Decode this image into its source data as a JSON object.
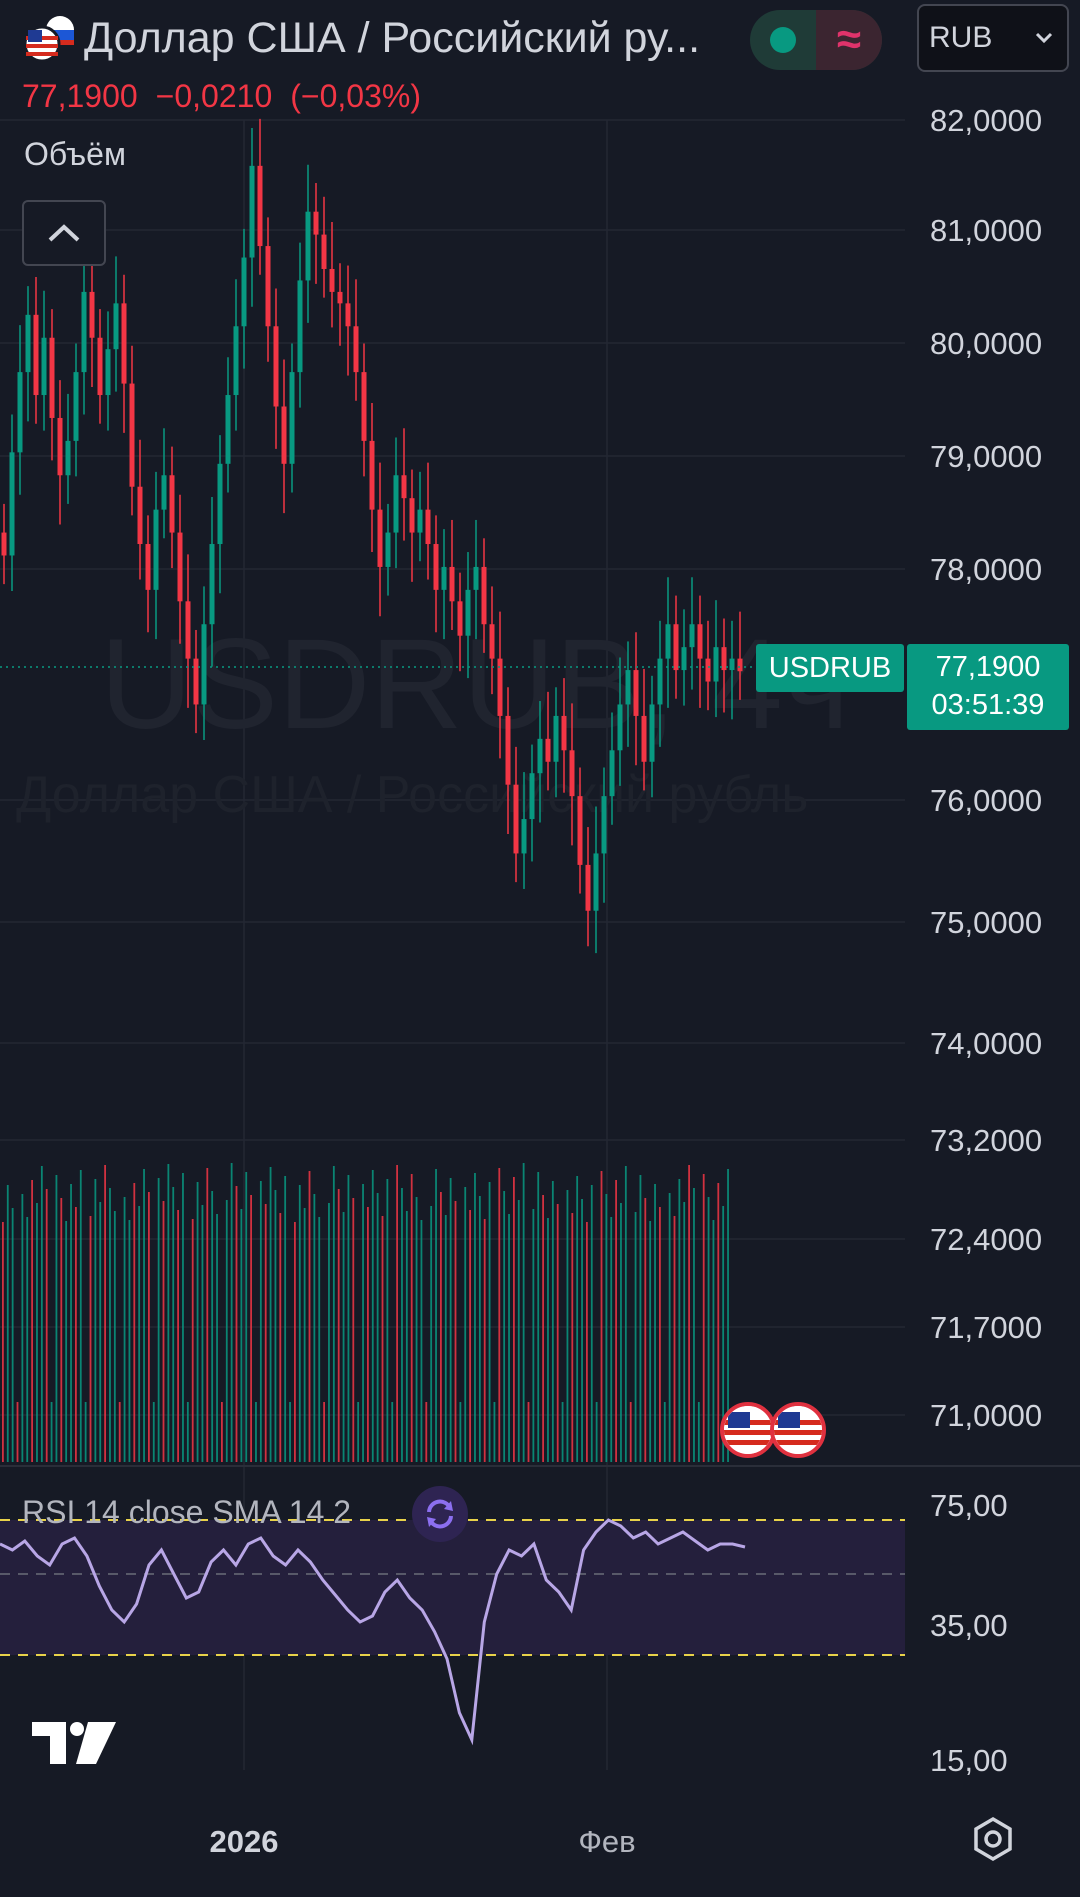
{
  "header": {
    "title": "Доллар США / Российский ру...",
    "price": "77,1900",
    "change": "−0,0210",
    "change_pct": "(−0,03%)",
    "volume_label": "Объём",
    "currency": "RUB",
    "up_color": "#089981",
    "down_color": "#f23645",
    "icons": [
      "flag-us-ru-icon",
      "chevron-up-icon",
      "market-status-icon",
      "wave-icon",
      "chevron-down-icon",
      "settings-icon",
      "tradingview-logo-icon"
    ]
  },
  "watermark": {
    "symbol": "USDRUB, 4ч",
    "description": "Доллар США / Российский рубль"
  },
  "price_tag": {
    "symbol": "USDRUB",
    "price": "77,1900",
    "countdown": "03:51:39"
  },
  "rsi": {
    "label": "RSI 14 close SMA 14 2"
  },
  "chart_data": {
    "type": "candlestick",
    "interval": "4h",
    "price_axis_ticks": [
      "82,0000",
      "81,0000",
      "80,0000",
      "79,0000",
      "78,0000",
      "76,0000",
      "75,0000",
      "74,0000",
      "73,2000",
      "72,4000",
      "71,7000",
      "71,0000"
    ],
    "rsi_axis_ticks": [
      "75,00",
      "35,00",
      "15,00"
    ],
    "x_ticks": [
      "2026",
      "Фев"
    ],
    "last_price": 77.19,
    "price_range": [
      74.0,
      82.0
    ],
    "candles_close": [
      78.2,
      79.1,
      79.8,
      80.3,
      79.6,
      80.1,
      79.4,
      78.9,
      79.2,
      79.8,
      80.5,
      80.1,
      79.6,
      80.0,
      80.4,
      79.7,
      78.8,
      78.3,
      77.9,
      78.6,
      78.9,
      78.4,
      77.8,
      77.3,
      76.9,
      77.6,
      78.3,
      79.0,
      79.6,
      80.2,
      80.8,
      81.6,
      80.9,
      80.2,
      79.5,
      79.0,
      79.8,
      80.6,
      81.2,
      81.0,
      80.7,
      80.5,
      80.4,
      80.2,
      79.8,
      79.2,
      78.6,
      78.1,
      78.4,
      78.9,
      78.7,
      78.4,
      78.6,
      78.3,
      77.9,
      78.1,
      77.8,
      77.5,
      77.9,
      78.1,
      77.6,
      77.3,
      76.8,
      76.2,
      75.6,
      75.9,
      76.3,
      76.6,
      76.4,
      76.8,
      76.5,
      76.1,
      75.5,
      75.1,
      75.6,
      76.1,
      76.5,
      76.9,
      77.2,
      76.8,
      76.4,
      76.9,
      77.3,
      77.6,
      77.2,
      77.4,
      77.6,
      77.3,
      77.1,
      77.4,
      77.2,
      77.3,
      77.19
    ],
    "rsi_values": [
      62,
      60,
      63,
      58,
      55,
      62,
      64,
      58,
      48,
      40,
      36,
      42,
      55,
      60,
      52,
      44,
      46,
      56,
      60,
      55,
      62,
      64,
      58,
      55,
      60,
      56,
      50,
      45,
      40,
      36,
      38,
      46,
      50,
      44,
      40,
      34,
      30,
      22,
      18,
      36,
      52,
      60,
      58,
      62,
      50,
      46,
      40,
      60,
      66,
      70,
      68,
      64,
      66,
      62,
      64,
      66,
      63,
      60,
      62,
      62,
      61
    ]
  }
}
